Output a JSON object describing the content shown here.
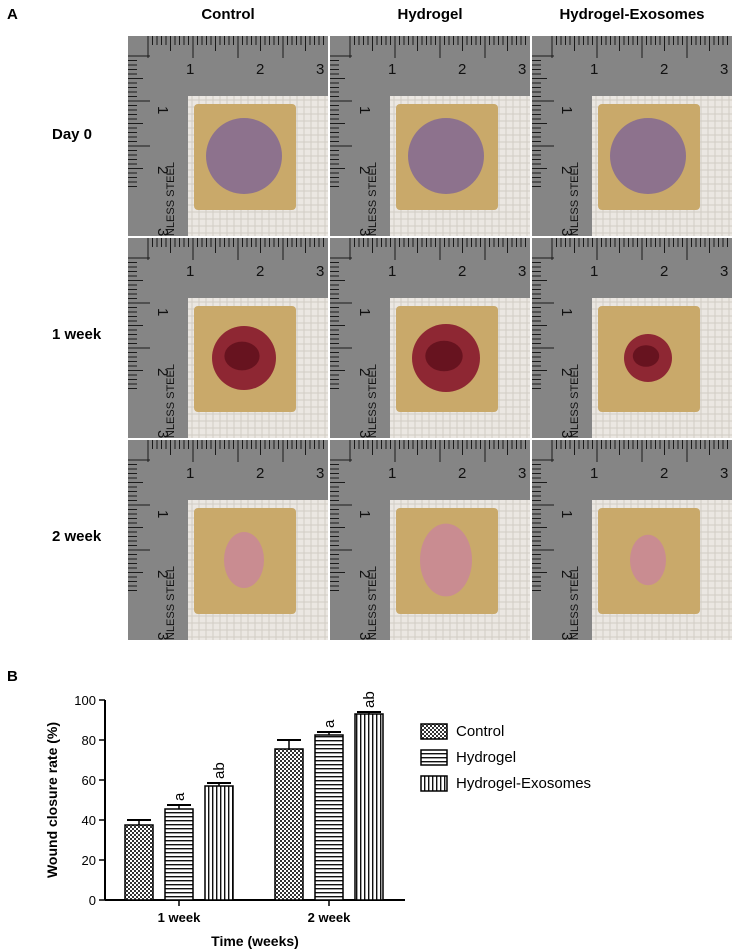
{
  "panel_a": {
    "letter": "A",
    "columns": [
      "Control",
      "Hydrogel",
      "Hydrogel-Exosomes"
    ],
    "rows": [
      "Day 0",
      "1 week",
      "2 week"
    ],
    "ruler_text": "NLESS STEEL",
    "ruler_numbers": [
      "1",
      "2",
      "3"
    ]
  },
  "panel_b": {
    "letter": "B"
  },
  "chart_data": {
    "type": "bar",
    "categories": [
      "1 week",
      "2 week"
    ],
    "series": [
      {
        "name": "Control",
        "values": [
          37.5,
          75.5
        ],
        "errors": [
          2.5,
          4.5
        ],
        "annotations": [
          "",
          ""
        ]
      },
      {
        "name": "Hydrogel",
        "values": [
          45.5,
          82.5
        ],
        "errors": [
          2.0,
          1.5
        ],
        "annotations": [
          "a",
          "a"
        ]
      },
      {
        "name": "Hydrogel-Exosomes",
        "values": [
          57,
          93
        ],
        "errors": [
          1.5,
          1.0
        ],
        "annotations": [
          "ab",
          "ab"
        ]
      }
    ],
    "xlabel": "Time (weeks)",
    "ylabel": "Wound closure rate (%)",
    "ylim": [
      0,
      100
    ],
    "yticks": [
      "0",
      "20",
      "40",
      "60",
      "80",
      "100"
    ],
    "legend_position": "right"
  },
  "colors": {
    "wound_day0": "#8a6f8f",
    "wound_1week": "#8b2030",
    "wound_2week": "#c98a93",
    "skin": "#c9a96a",
    "gauze": "#ebe7e2",
    "steel": "#7c7c7c"
  }
}
